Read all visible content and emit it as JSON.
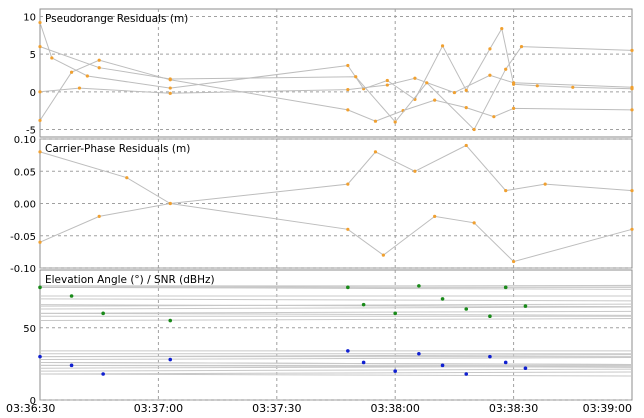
{
  "chart_data": [
    {
      "type": "line",
      "title": "Pseudorange Residuals (m)",
      "ylim": [
        -6,
        11
      ],
      "yticks": [
        "10",
        "5",
        "0",
        "-5"
      ],
      "ytick_values": [
        10,
        5,
        0,
        -5
      ],
      "grid": true,
      "series": [
        {
          "x": [
            "03:36:30",
            "03:36:33",
            "03:36:42",
            "03:37:03",
            "03:37:48",
            "03:37:52",
            "03:37:58",
            "03:38:05",
            "03:38:12",
            "03:38:18",
            "03:38:24",
            "03:38:27",
            "03:38:30",
            "03:38:36",
            "03:38:45",
            "03:39:00"
          ],
          "y": [
            9.2,
            4.5,
            2.1,
            0.5,
            3.5,
            0.4,
            1.5,
            -1.0,
            6.1,
            0.2,
            5.7,
            8.4,
            1.0,
            0.8,
            0.6,
            0.4
          ],
          "color": "#bdbdbd"
        },
        {
          "x": [
            "03:36:30",
            "03:36:38",
            "03:36:45",
            "03:37:03",
            "03:37:48",
            "03:37:55",
            "03:38:02",
            "03:38:10",
            "03:38:18",
            "03:38:25",
            "03:38:30",
            "03:39:00"
          ],
          "y": [
            -3.8,
            2.6,
            4.2,
            1.6,
            -2.4,
            -3.9,
            -2.5,
            -1.1,
            -2.1,
            -3.3,
            -2.2,
            -2.4
          ],
          "color": "#bdbdbd"
        },
        {
          "x": [
            "03:36:30",
            "03:36:40",
            "03:37:03",
            "03:37:48",
            "03:37:58",
            "03:38:05",
            "03:38:15",
            "03:38:24",
            "03:38:30",
            "03:39:00"
          ],
          "y": [
            0.0,
            0.5,
            -0.2,
            0.3,
            0.9,
            1.8,
            -0.1,
            2.2,
            1.2,
            0.6
          ],
          "color": "#bdbdbd"
        },
        {
          "x": [
            "03:36:30",
            "03:36:45",
            "03:37:03",
            "03:37:50",
            "03:38:00",
            "03:38:08",
            "03:38:20",
            "03:38:28",
            "03:38:32",
            "03:39:00"
          ],
          "y": [
            6.0,
            3.2,
            1.7,
            2.0,
            -4.0,
            1.2,
            -5.0,
            3.0,
            6.0,
            5.5
          ],
          "color": "#bdbdbd"
        }
      ]
    },
    {
      "type": "line",
      "title": "Carrier-Phase Residuals (m)",
      "ylim": [
        -0.1,
        0.1
      ],
      "yticks": [
        "0.10",
        "0.05",
        "0.00",
        "-0.05",
        "-0.10"
      ],
      "ytick_values": [
        0.1,
        0.05,
        0.0,
        -0.05,
        -0.1
      ],
      "grid": true,
      "series": [
        {
          "x": [
            "03:36:30",
            "03:36:52",
            "03:37:03",
            "03:37:48",
            "03:37:55",
            "03:38:05",
            "03:38:18",
            "03:38:28",
            "03:38:38",
            "03:39:00"
          ],
          "y": [
            0.08,
            0.04,
            0.0,
            0.03,
            0.08,
            0.05,
            0.09,
            0.02,
            0.03,
            0.02
          ],
          "color": "#bdbdbd"
        },
        {
          "x": [
            "03:36:30",
            "03:36:45",
            "03:37:03",
            "03:37:48",
            "03:37:57",
            "03:38:10",
            "03:38:20",
            "03:38:30",
            "03:39:00"
          ],
          "y": [
            -0.06,
            -0.02,
            0.0,
            -0.04,
            -0.08,
            -0.02,
            -0.03,
            -0.09,
            -0.04
          ],
          "color": "#bdbdbd"
        }
      ]
    },
    {
      "type": "scatter",
      "title": "Elevation Angle (°) / SNR (dBHz)",
      "ylim": [
        0,
        90
      ],
      "yticks": [
        "50",
        "0"
      ],
      "ytick_values": [
        50,
        0
      ],
      "grid": true,
      "series": [
        {
          "x": [
            "03:36:30",
            "03:36:38",
            "03:36:46",
            "03:37:03",
            "03:37:48",
            "03:37:52",
            "03:38:00",
            "03:38:06",
            "03:38:12",
            "03:38:18",
            "03:38:24",
            "03:38:28",
            "03:38:33"
          ],
          "y": [
            78,
            72,
            60,
            55,
            78,
            66,
            60,
            79,
            70,
            63,
            58,
            78,
            65
          ],
          "color": "#1a8a1a"
        },
        {
          "x": [
            "03:36:30",
            "03:36:38",
            "03:36:46",
            "03:37:03",
            "03:37:48",
            "03:37:52",
            "03:38:00",
            "03:38:06",
            "03:38:12",
            "03:38:18",
            "03:38:24",
            "03:38:28",
            "03:38:33"
          ],
          "y": [
            30,
            24,
            18,
            28,
            34,
            26,
            20,
            32,
            24,
            18,
            30,
            26,
            22
          ],
          "color": "#1020d0"
        }
      ]
    }
  ],
  "x_axis": {
    "ticks": [
      "03:36:30",
      "03:37:00",
      "03:37:30",
      "03:38:00",
      "03:38:30",
      "03:39:00"
    ]
  }
}
